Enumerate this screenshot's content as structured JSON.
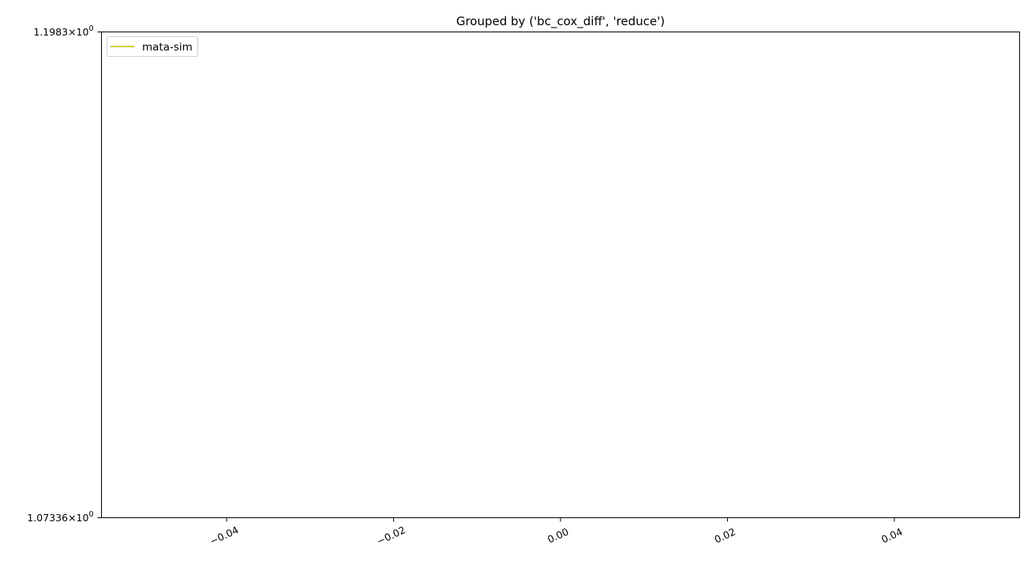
{
  "chart_data": {
    "type": "line",
    "title": "Grouped by ('bc_cox_diff', 'reduce')",
    "xlabel": "",
    "ylabel": "",
    "xlim": [
      -0.055,
      0.055
    ],
    "ylim": [
      1.07336,
      1.1983
    ],
    "yscale": "log",
    "x_ticks": [
      {
        "value": -0.04,
        "label": "−0.04"
      },
      {
        "value": -0.02,
        "label": "−0.02"
      },
      {
        "value": 0.0,
        "label": "0.00"
      },
      {
        "value": 0.02,
        "label": "0.02"
      },
      {
        "value": 0.04,
        "label": "0.04"
      }
    ],
    "y_ticks": [
      {
        "value": 1.1983,
        "mantissa": "1.1983",
        "base": "10",
        "exponent": "0"
      },
      {
        "value": 1.07336,
        "mantissa": "1.07336",
        "base": "10",
        "exponent": "0"
      }
    ],
    "series": [
      {
        "name": "mata-sim",
        "color": "#bfbf00",
        "x": [],
        "y": []
      }
    ],
    "grid": false,
    "legend": "top-left"
  }
}
